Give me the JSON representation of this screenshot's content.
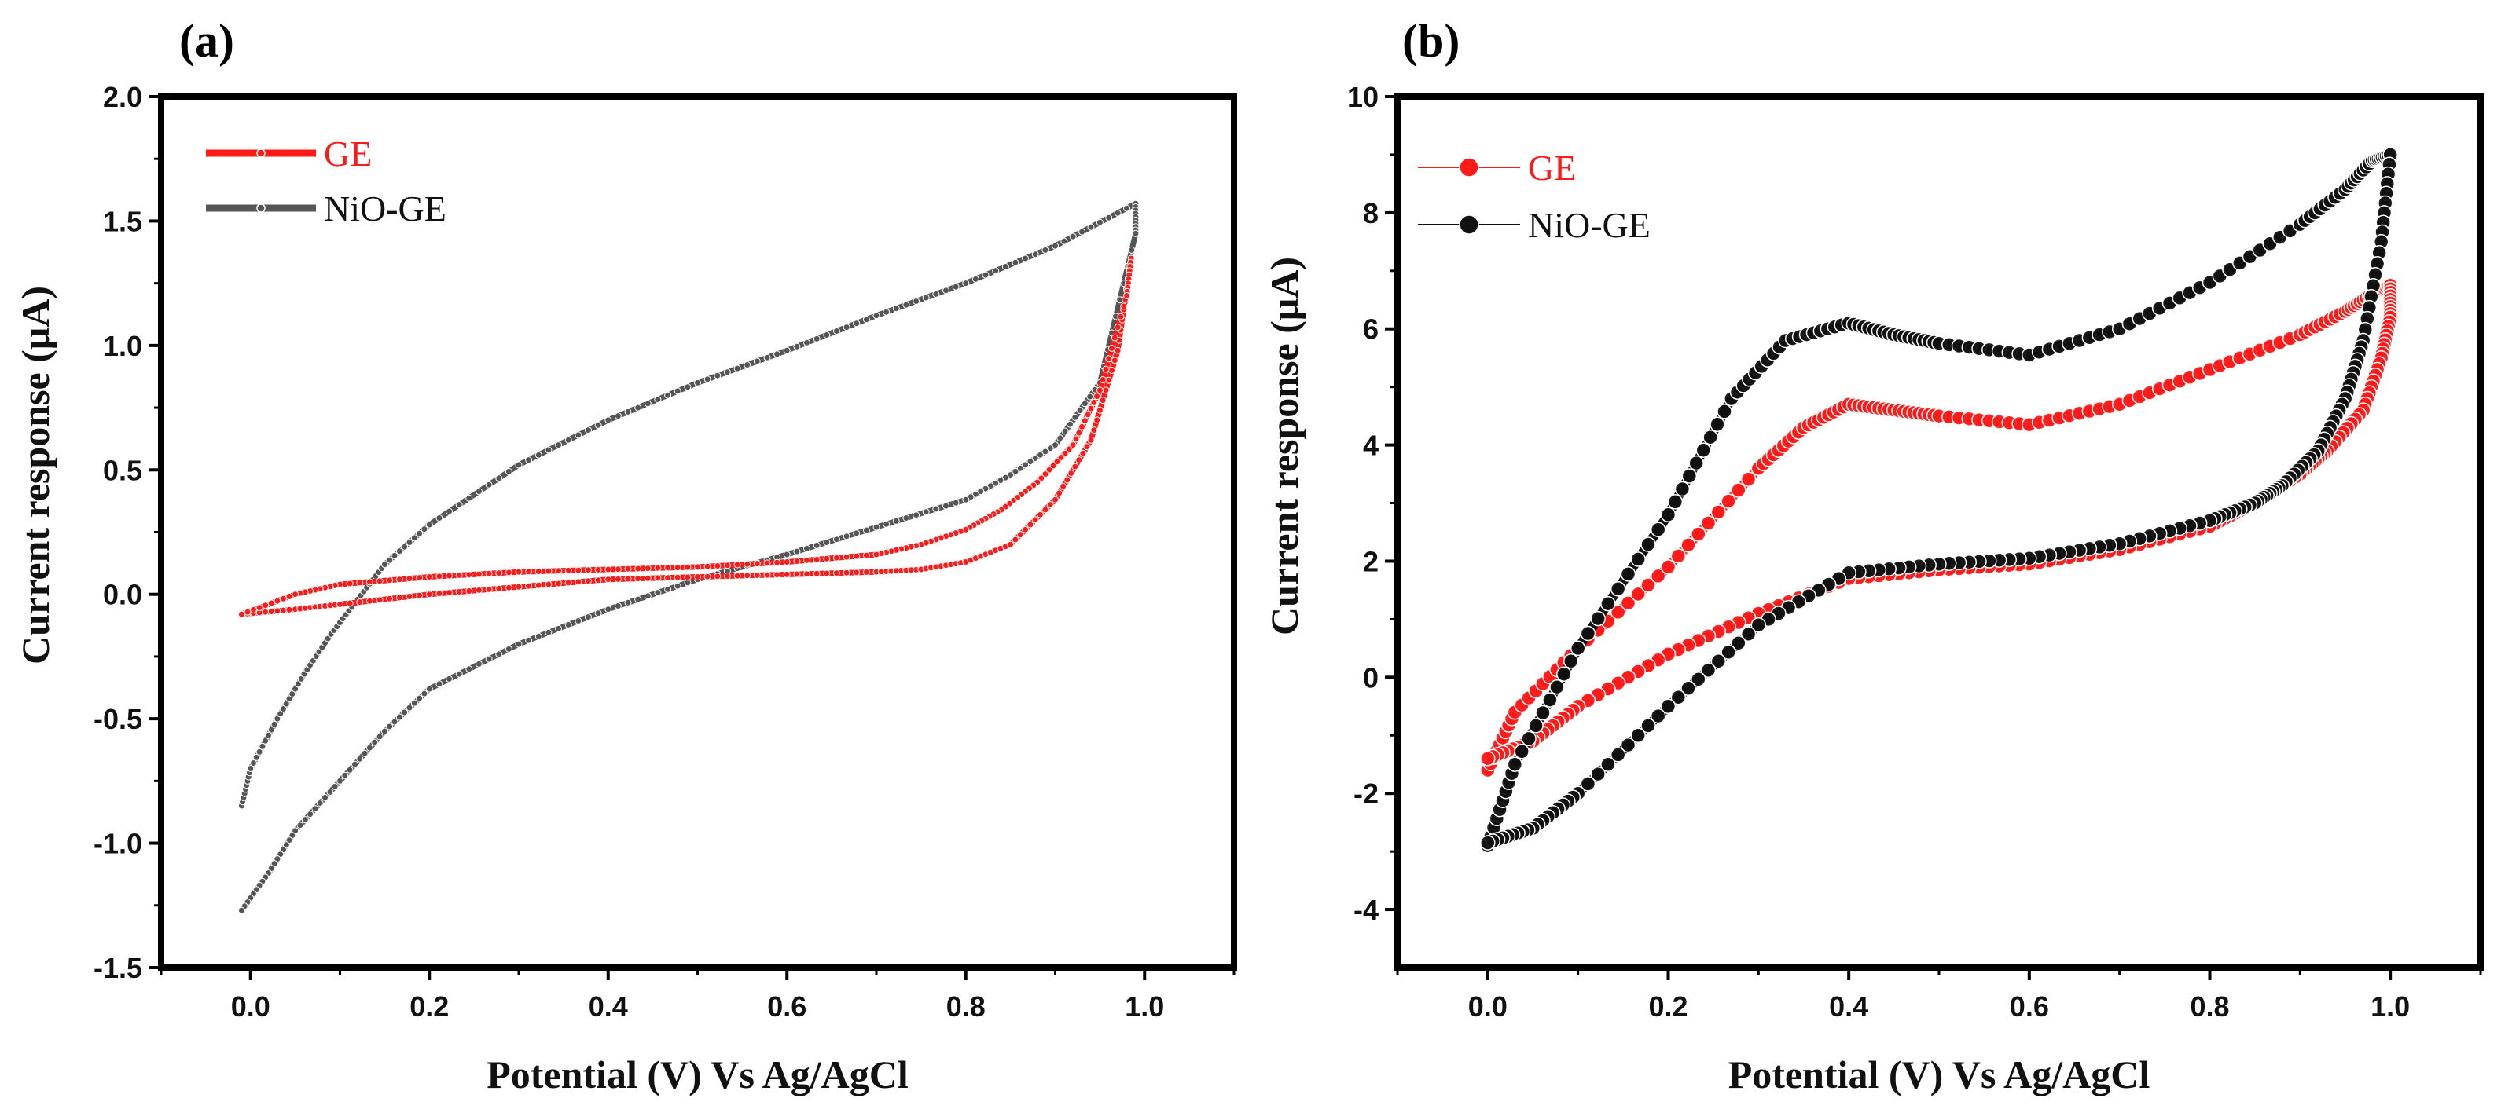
{
  "chart_data": [
    {
      "panel_label": "(a)",
      "type": "line",
      "xlabel": "Potential (V) Vs Ag/AgCl",
      "ylabel": "Current response (μA)",
      "xlim": [
        -0.1,
        1.1
      ],
      "ylim": [
        -1.5,
        2.0
      ],
      "xticks": [
        0.0,
        0.2,
        0.4,
        0.6,
        0.8,
        1.0
      ],
      "xtick_labels": [
        "0.0",
        "0.2",
        "0.4",
        "0.6",
        "0.8",
        "1.0"
      ],
      "yticks": [
        -1.5,
        -1.0,
        -0.5,
        0.0,
        0.5,
        1.0,
        1.5,
        2.0
      ],
      "ytick_labels": [
        "-1.5",
        "-1.0",
        "-0.5",
        "0.0",
        "0.5",
        "1.0",
        "1.5",
        "2.0"
      ],
      "legend_position": "top-left",
      "series": [
        {
          "name": "NiO-GE",
          "color": "#555555",
          "marker": "small-circle",
          "x": [
            -0.01,
            0.0,
            0.03,
            0.06,
            0.09,
            0.12,
            0.15,
            0.2,
            0.3,
            0.4,
            0.5,
            0.6,
            0.7,
            0.8,
            0.9,
            0.99,
            0.99,
            0.95,
            0.9,
            0.85,
            0.8,
            0.7,
            0.6,
            0.5,
            0.4,
            0.3,
            0.2,
            0.15,
            0.1,
            0.05,
            0.02,
            -0.01
          ],
          "y": [
            -0.85,
            -0.7,
            -0.5,
            -0.32,
            -0.16,
            -0.02,
            0.12,
            0.28,
            0.52,
            0.7,
            0.85,
            0.98,
            1.12,
            1.25,
            1.4,
            1.57,
            1.45,
            0.85,
            0.6,
            0.48,
            0.38,
            0.27,
            0.16,
            0.06,
            -0.06,
            -0.2,
            -0.38,
            -0.55,
            -0.75,
            -0.95,
            -1.12,
            -1.27
          ]
        },
        {
          "name": "GE",
          "color": "#ff1a1a",
          "marker": "small-circle",
          "x": [
            -0.01,
            0.05,
            0.1,
            0.2,
            0.3,
            0.4,
            0.5,
            0.6,
            0.7,
            0.75,
            0.8,
            0.85,
            0.9,
            0.94,
            0.97,
            0.985,
            0.98,
            0.95,
            0.92,
            0.88,
            0.84,
            0.8,
            0.75,
            0.7,
            0.6,
            0.5,
            0.4,
            0.3,
            0.2,
            0.1,
            0.05,
            -0.01
          ],
          "y": [
            -0.08,
            -0.06,
            -0.04,
            0.0,
            0.03,
            0.06,
            0.07,
            0.08,
            0.09,
            0.1,
            0.13,
            0.2,
            0.38,
            0.62,
            0.98,
            1.35,
            1.2,
            0.82,
            0.6,
            0.45,
            0.34,
            0.26,
            0.2,
            0.16,
            0.13,
            0.11,
            0.1,
            0.09,
            0.07,
            0.04,
            0.0,
            -0.08
          ]
        }
      ]
    },
    {
      "panel_label": "(b)",
      "type": "line",
      "xlabel": "Potential (V) Vs Ag/AgCl",
      "ylabel": "Current response (μA)",
      "xlim": [
        -0.1,
        1.1
      ],
      "ylim": [
        -5,
        10
      ],
      "xticks": [
        0.0,
        0.2,
        0.4,
        0.6,
        0.8,
        1.0
      ],
      "xtick_labels": [
        "0.0",
        "0.2",
        "0.4",
        "0.6",
        "0.8",
        "1.0"
      ],
      "yticks": [
        -4,
        -2,
        0,
        2,
        4,
        6,
        8,
        10
      ],
      "ytick_labels": [
        "-4",
        "-2",
        "0",
        "2",
        "4",
        "6",
        "8",
        "10"
      ],
      "legend_position": "top-left",
      "series": [
        {
          "name": "GE",
          "color": "#ff1a1a",
          "marker": "large-circle",
          "x": [
            0.0,
            0.03,
            0.1,
            0.2,
            0.3,
            0.35,
            0.4,
            0.45,
            0.5,
            0.6,
            0.7,
            0.8,
            0.9,
            0.95,
            0.98,
            1.0,
            1.0,
            0.99,
            0.97,
            0.93,
            0.9,
            0.85,
            0.8,
            0.7,
            0.6,
            0.5,
            0.4,
            0.3,
            0.2,
            0.1,
            0.05,
            0.0
          ],
          "y": [
            -1.6,
            -0.6,
            0.5,
            1.9,
            3.6,
            4.3,
            4.7,
            4.6,
            4.5,
            4.35,
            4.7,
            5.3,
            5.9,
            6.3,
            6.6,
            6.75,
            6.2,
            5.5,
            4.6,
            3.9,
            3.5,
            3.0,
            2.6,
            2.2,
            1.95,
            1.85,
            1.7,
            1.1,
            0.4,
            -0.5,
            -1.1,
            -1.4
          ]
        },
        {
          "name": "NiO-GE",
          "color": "#111111",
          "marker": "large-circle",
          "x": [
            0.0,
            0.03,
            0.1,
            0.2,
            0.27,
            0.33,
            0.4,
            0.45,
            0.5,
            0.6,
            0.7,
            0.8,
            0.9,
            0.95,
            0.98,
            1.0,
            0.99,
            0.97,
            0.95,
            0.92,
            0.88,
            0.85,
            0.8,
            0.7,
            0.6,
            0.5,
            0.4,
            0.3,
            0.2,
            0.1,
            0.05,
            0.0
          ],
          "y": [
            -2.9,
            -1.5,
            0.5,
            2.8,
            4.8,
            5.8,
            6.1,
            5.9,
            5.75,
            5.55,
            6.0,
            6.8,
            7.8,
            8.4,
            8.9,
            9.0,
            7.5,
            5.8,
            4.8,
            3.9,
            3.3,
            3.0,
            2.7,
            2.3,
            2.05,
            1.95,
            1.8,
            0.9,
            -0.5,
            -2.0,
            -2.6,
            -2.85
          ]
        }
      ]
    }
  ]
}
